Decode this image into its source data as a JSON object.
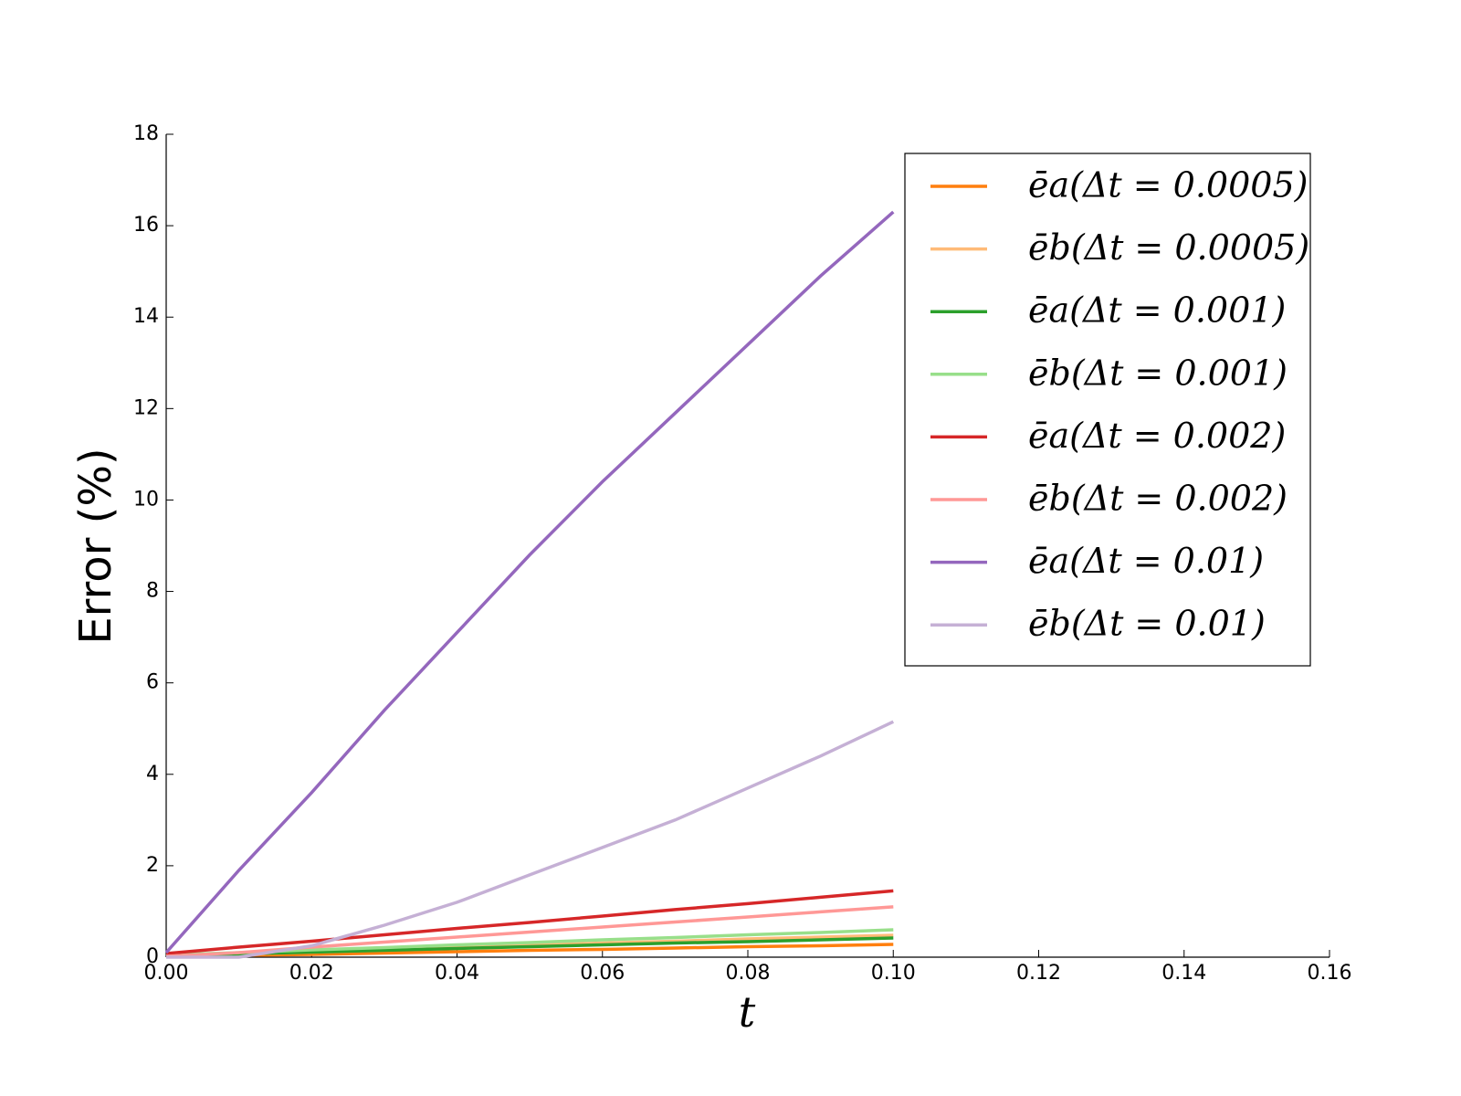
{
  "chart_data": {
    "type": "line",
    "xlabel": "t",
    "ylabel": "Error (%)",
    "x": [
      0,
      0.01,
      0.02,
      0.03,
      0.04,
      0.05,
      0.06,
      0.07,
      0.08,
      0.09,
      0.1
    ],
    "series": [
      {
        "name": "ēa(Δt = 0.0005)",
        "color": "#ff7f0e",
        "values": [
          0.01,
          0.04,
          0.06,
          0.09,
          0.12,
          0.15,
          0.17,
          0.2,
          0.23,
          0.25,
          0.28
        ]
      },
      {
        "name": "ēb(Δt = 0.0005)",
        "color": "#ffbb78",
        "values": [
          0.02,
          0.07,
          0.11,
          0.16,
          0.21,
          0.26,
          0.31,
          0.35,
          0.4,
          0.44,
          0.48
        ]
      },
      {
        "name": "ēa(Δt = 0.001)",
        "color": "#2ca02c",
        "values": [
          0.03,
          0.07,
          0.11,
          0.15,
          0.19,
          0.23,
          0.27,
          0.31,
          0.34,
          0.38,
          0.42
        ]
      },
      {
        "name": "ēb(Δt = 0.001)",
        "color": "#98df8a",
        "values": [
          0.05,
          0.1,
          0.16,
          0.21,
          0.27,
          0.32,
          0.38,
          0.43,
          0.49,
          0.54,
          0.6
        ]
      },
      {
        "name": "ēa(Δt = 0.002)",
        "color": "#d62728",
        "values": [
          0.08,
          0.22,
          0.35,
          0.49,
          0.63,
          0.76,
          0.9,
          1.04,
          1.17,
          1.31,
          1.45
        ]
      },
      {
        "name": "ēb(Δt = 0.002)",
        "color": "#ff9896",
        "values": [
          0.02,
          0.1,
          0.22,
          0.33,
          0.44,
          0.55,
          0.66,
          0.77,
          0.88,
          0.99,
          1.1
        ]
      },
      {
        "name": "ēa(Δt = 0.01)",
        "color": "#9467bd",
        "values": [
          0.1,
          1.9,
          3.6,
          5.4,
          7.1,
          8.8,
          10.4,
          11.9,
          13.4,
          14.9,
          16.3
        ]
      },
      {
        "name": "ēb(Δt = 0.01)",
        "color": "#c5b0d5",
        "values": [
          0,
          0,
          0.25,
          0.7,
          1.2,
          1.8,
          2.4,
          3.0,
          3.7,
          4.4,
          5.15
        ]
      }
    ],
    "xlim": [
      0,
      0.16
    ],
    "xticks": [
      {
        "value": 0,
        "label": "0.00"
      },
      {
        "value": 0.02,
        "label": "0.02"
      },
      {
        "value": 0.04,
        "label": "0.04"
      },
      {
        "value": 0.06,
        "label": "0.06"
      },
      {
        "value": 0.08,
        "label": "0.08"
      },
      {
        "value": 0.1,
        "label": "0.10"
      },
      {
        "value": 0.12,
        "label": "0.12"
      },
      {
        "value": 0.14,
        "label": "0.14"
      },
      {
        "value": 0.16,
        "label": "0.16"
      }
    ],
    "ylim": [
      0,
      18
    ],
    "yticks": [
      0,
      2,
      4,
      6,
      8,
      10,
      12,
      14,
      16,
      18
    ],
    "legend": "upper right"
  }
}
